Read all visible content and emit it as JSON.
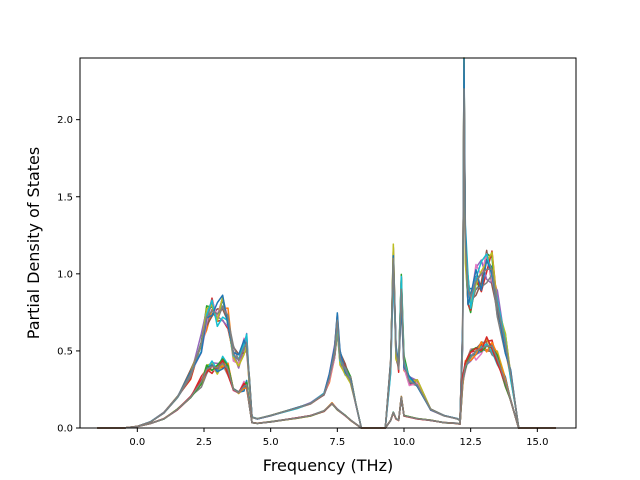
{
  "chart_data": {
    "type": "line",
    "title": "",
    "xlabel": "Frequency (THz)",
    "ylabel": "Partial Density of States",
    "xlim": [
      -2.15,
      16.45
    ],
    "ylim": [
      0.0,
      2.4
    ],
    "xticks": [
      0.0,
      2.5,
      5.0,
      7.5,
      10.0,
      12.5,
      15.0
    ],
    "xtick_labels": [
      "0.0",
      "2.5",
      "5.0",
      "7.5",
      "10.0",
      "12.5",
      "15.0"
    ],
    "yticks": [
      0.0,
      0.5,
      1.0,
      1.5,
      2.0
    ],
    "ytick_labels": [
      "0.0",
      "0.5",
      "1.0",
      "1.5",
      "2.0"
    ],
    "grid": false,
    "legend": "none",
    "series_colors": [
      "#1f77b4",
      "#ff7f0e",
      "#2ca02c",
      "#d62728",
      "#9467bd",
      "#8c564b",
      "#e377c2",
      "#7f7f7f",
      "#bcbd22",
      "#17becf"
    ],
    "series": [
      {
        "group": "upper",
        "x": [
          -1.5,
          -0.5,
          0.0,
          0.5,
          1.0,
          1.5,
          2.0,
          2.4,
          2.6,
          2.8,
          3.0,
          3.2,
          3.4,
          3.6,
          3.8,
          4.0,
          4.1,
          4.2,
          4.3,
          4.5,
          5.0,
          6.0,
          6.5,
          7.0,
          7.2,
          7.4,
          7.5,
          7.6,
          7.8,
          8.0,
          8.2,
          8.4,
          9.3,
          9.5,
          9.6,
          9.7,
          9.8,
          9.9,
          10.0,
          10.2,
          10.5,
          11.0,
          11.5,
          12.0,
          12.1,
          12.2,
          12.25,
          12.3,
          12.4,
          12.5,
          12.7,
          12.9,
          13.1,
          13.3,
          13.5,
          13.8,
          14.0,
          14.2,
          14.3,
          15.7
        ],
        "y": [
          0.0,
          0.0,
          0.01,
          0.04,
          0.1,
          0.2,
          0.35,
          0.55,
          0.72,
          0.76,
          0.74,
          0.78,
          0.73,
          0.48,
          0.44,
          0.52,
          0.55,
          0.3,
          0.07,
          0.06,
          0.08,
          0.13,
          0.16,
          0.22,
          0.32,
          0.5,
          0.7,
          0.45,
          0.38,
          0.3,
          0.15,
          0.0,
          0.0,
          0.4,
          1.1,
          0.5,
          0.4,
          0.9,
          0.42,
          0.3,
          0.28,
          0.12,
          0.08,
          0.06,
          0.05,
          0.6,
          2.2,
          1.2,
          0.9,
          0.85,
          0.95,
          1.0,
          1.03,
          1.03,
          0.8,
          0.55,
          0.35,
          0.12,
          0.0,
          0.0
        ]
      },
      {
        "group": "lower",
        "x": [
          -1.5,
          -0.5,
          0.0,
          0.5,
          1.0,
          1.5,
          2.0,
          2.4,
          2.6,
          2.8,
          3.0,
          3.2,
          3.4,
          3.6,
          3.8,
          4.0,
          4.1,
          4.2,
          4.3,
          4.5,
          5.0,
          6.0,
          6.5,
          7.0,
          7.3,
          7.5,
          7.8,
          8.0,
          8.4,
          9.3,
          9.5,
          9.6,
          9.7,
          9.8,
          9.9,
          10.0,
          10.5,
          11.0,
          11.5,
          12.0,
          12.1,
          12.2,
          12.3,
          12.5,
          12.7,
          12.9,
          13.1,
          13.3,
          13.5,
          13.8,
          14.0,
          14.2,
          14.3,
          15.7
        ],
        "y": [
          0.0,
          0.0,
          0.01,
          0.03,
          0.06,
          0.12,
          0.2,
          0.3,
          0.38,
          0.4,
          0.39,
          0.42,
          0.38,
          0.25,
          0.23,
          0.27,
          0.28,
          0.15,
          0.035,
          0.03,
          0.04,
          0.065,
          0.08,
          0.11,
          0.16,
          0.12,
          0.08,
          0.05,
          0.0,
          0.0,
          0.05,
          0.1,
          0.06,
          0.05,
          0.2,
          0.08,
          0.06,
          0.05,
          0.035,
          0.03,
          0.025,
          0.3,
          0.4,
          0.46,
          0.5,
          0.52,
          0.53,
          0.53,
          0.45,
          0.3,
          0.18,
          0.06,
          0.0,
          0.0
        ]
      }
    ]
  }
}
